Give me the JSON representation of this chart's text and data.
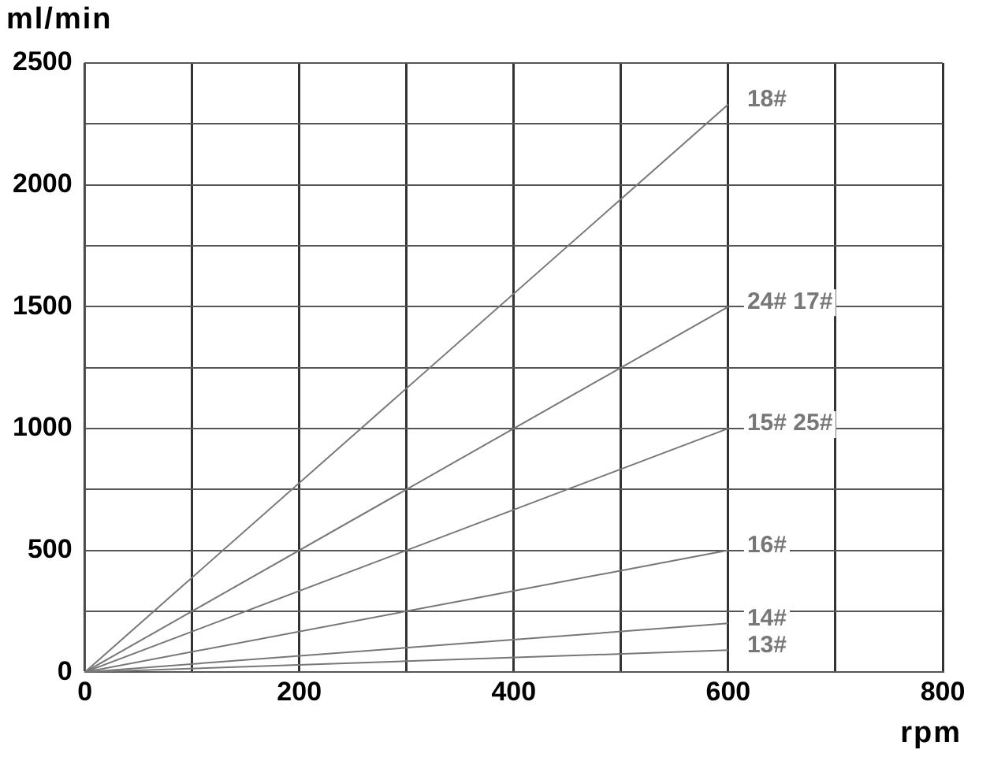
{
  "chart_data": {
    "type": "line",
    "xlabel": "rpm",
    "ylabel": "ml/min",
    "xlim": [
      0,
      800
    ],
    "ylim": [
      0,
      2500
    ],
    "xticks": [
      0,
      {
        "value": 100,
        "label": null
      },
      200,
      {
        "value": 300,
        "label": null
      },
      400,
      {
        "value": 500,
        "label": null
      },
      600,
      {
        "value": 700,
        "label": null
      },
      800
    ],
    "yticks": [
      0,
      {
        "value": 250,
        "label": null
      },
      500,
      {
        "value": 750,
        "label": null
      },
      1000,
      {
        "value": 1250,
        "label": null
      },
      1500,
      {
        "value": 1750,
        "label": null
      },
      2000,
      {
        "value": 2250,
        "label": null
      },
      2500
    ],
    "grid": true,
    "legend": false,
    "marker": "none",
    "line_style": "solid",
    "x": [
      0,
      600
    ],
    "series": [
      {
        "name": "18#",
        "color": "#777777",
        "values": [
          0,
          2330
        ]
      },
      {
        "name": "24# 17#",
        "color": "#777777",
        "values": [
          0,
          1500
        ]
      },
      {
        "name": "15# 25#",
        "color": "#777777",
        "values": [
          0,
          1000
        ]
      },
      {
        "name": "16#",
        "color": "#777777",
        "values": [
          0,
          500
        ]
      },
      {
        "name": "14#",
        "color": "#777777",
        "values": [
          0,
          200
        ]
      },
      {
        "name": "13#",
        "color": "#777777",
        "values": [
          0,
          90
        ]
      }
    ]
  }
}
